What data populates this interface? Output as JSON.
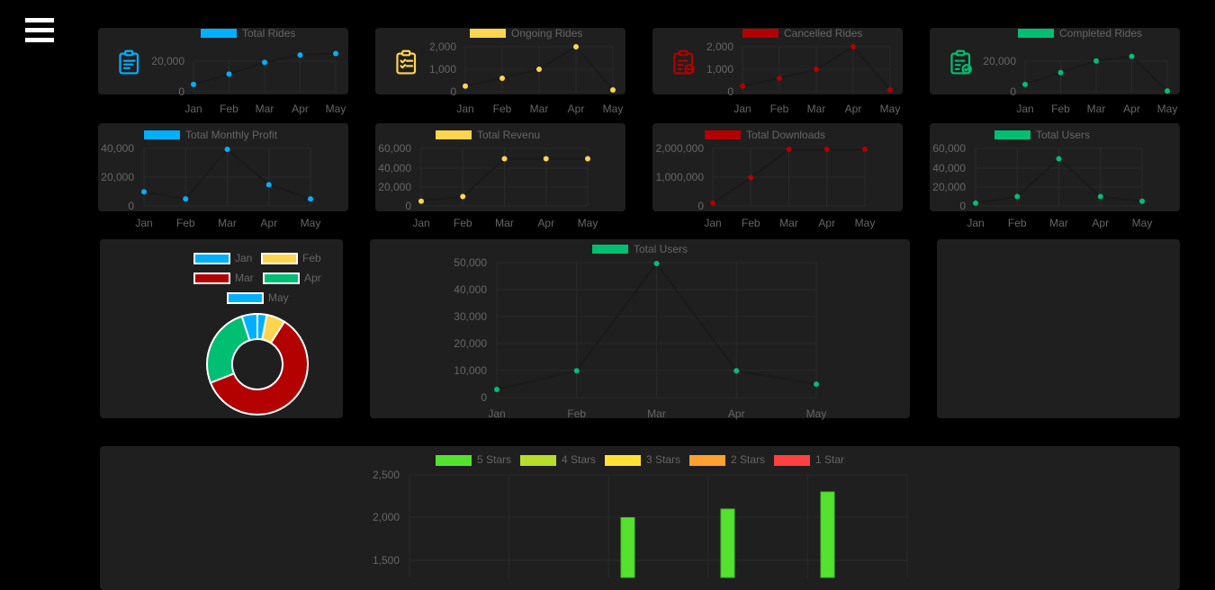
{
  "menu": {
    "icon": "hamburger-menu-icon"
  },
  "colors": {
    "background": "#000000",
    "card": "#1f1f1f",
    "grid": "#2a2a2a",
    "tick_text": "#666666",
    "blue": "#00b0ff",
    "yellow": "#ffd54f",
    "red": "#b30000",
    "green": "#00bf73",
    "star5": "#55e22e",
    "star4": "#b8dd2a",
    "star3": "#ffe135",
    "star2": "#ffa030",
    "star1": "#ff4040"
  },
  "months": [
    "Jan",
    "Feb",
    "Mar",
    "Apr",
    "May"
  ],
  "chart_data": [
    {
      "id": "total-rides",
      "type": "line",
      "title": "Total Rides",
      "legend": "Total Rides",
      "color": "#00b0ff",
      "icon": "clipboard-list-icon",
      "categories": [
        "Jan",
        "Feb",
        "Mar",
        "Apr",
        "May"
      ],
      "values": [
        5000,
        12000,
        20000,
        25000,
        26000
      ],
      "yticks": [
        "0",
        "20,000"
      ],
      "ylim": [
        0,
        30000
      ]
    },
    {
      "id": "ongoing-rides",
      "type": "line",
      "title": "Ongoing Rides",
      "legend": "Ongoing Rides",
      "color": "#ffd54f",
      "icon": "clipboard-checklist-icon",
      "categories": [
        "Jan",
        "Feb",
        "Mar",
        "Apr",
        "May"
      ],
      "values": [
        250,
        600,
        1000,
        2000,
        80
      ],
      "yticks": [
        "0",
        "1,000",
        "2,000"
      ],
      "ylim": [
        0,
        2000
      ]
    },
    {
      "id": "cancelled-rides",
      "type": "line",
      "title": "Cancelled Rides",
      "legend": "Cancelled Rides",
      "color": "#b30000",
      "icon": "clipboard-minus-icon",
      "categories": [
        "Jan",
        "Feb",
        "Mar",
        "Apr",
        "May"
      ],
      "values": [
        250,
        600,
        1000,
        2000,
        80
      ],
      "yticks": [
        "0",
        "1,000",
        "2,000"
      ],
      "ylim": [
        0,
        2000
      ]
    },
    {
      "id": "completed-rides",
      "type": "line",
      "title": "Completed Rides",
      "legend": "Completed Rides",
      "color": "#00bf73",
      "icon": "clipboard-check-icon",
      "categories": [
        "Jan",
        "Feb",
        "Mar",
        "Apr",
        "May"
      ],
      "values": [
        5000,
        13000,
        21000,
        24000,
        500
      ],
      "yticks": [
        "0",
        "20,000"
      ],
      "ylim": [
        0,
        30000
      ]
    },
    {
      "id": "total-monthly-profit",
      "type": "line",
      "title": "Total Monthly Profit",
      "legend": "Total Monthly Profit",
      "color": "#00b0ff",
      "categories": [
        "Jan",
        "Feb",
        "Mar",
        "Apr",
        "May"
      ],
      "values": [
        10000,
        5000,
        40000,
        15000,
        5000
      ],
      "yticks": [
        "0",
        "20,000",
        "40,000"
      ],
      "ylim": [
        0,
        40000
      ]
    },
    {
      "id": "total-revenu",
      "type": "line",
      "title": "Total Revenu",
      "legend": "Total Revenu",
      "color": "#ffd54f",
      "categories": [
        "Jan",
        "Feb",
        "Mar",
        "Apr",
        "May"
      ],
      "values": [
        5000,
        10000,
        50000,
        50000,
        50000
      ],
      "yticks": [
        "0",
        "20,000",
        "40,000",
        "60,000"
      ],
      "ylim": [
        0,
        60000
      ]
    },
    {
      "id": "total-downloads",
      "type": "line",
      "title": "Total Downloads",
      "legend": "Total Downloads",
      "color": "#b30000",
      "categories": [
        "Jan",
        "Feb",
        "Mar",
        "Apr",
        "May"
      ],
      "values": [
        100000,
        1000000,
        2000000,
        2000000,
        2000000
      ],
      "yticks": [
        "0",
        "1,000,000",
        "2,000,000"
      ],
      "ylim": [
        0,
        2000000
      ]
    },
    {
      "id": "total-users-small",
      "type": "line",
      "title": "Total Users",
      "legend": "Total Users",
      "color": "#00bf73",
      "categories": [
        "Jan",
        "Feb",
        "Mar",
        "Apr",
        "May"
      ],
      "values": [
        3000,
        10000,
        50000,
        10000,
        5000
      ],
      "yticks": [
        "0",
        "20,000",
        "40,000",
        "60,000"
      ],
      "ylim": [
        0,
        60000
      ]
    },
    {
      "id": "monthly-donut",
      "type": "pie",
      "title": "",
      "categories": [
        "Jan",
        "Feb",
        "Mar",
        "Apr",
        "May"
      ],
      "values": [
        3,
        6,
        60,
        26,
        5
      ],
      "colors": [
        "#00b0ff",
        "#ffd54f",
        "#b30000",
        "#00bf73",
        "#00b0ff"
      ]
    },
    {
      "id": "total-users-large",
      "type": "line",
      "title": "Total Users",
      "legend": "Total Users",
      "color": "#00bf73",
      "categories": [
        "Jan",
        "Feb",
        "Mar",
        "Apr",
        "May"
      ],
      "values": [
        3000,
        10000,
        50000,
        10000,
        5000
      ],
      "yticks": [
        "0",
        "10,000",
        "20,000",
        "30,000",
        "40,000",
        "50,000"
      ],
      "ylim": [
        0,
        50000
      ]
    },
    {
      "id": "ratings-bar",
      "type": "bar",
      "title": "",
      "legend": [
        "5 Stars",
        "4 Stars",
        "3 Stars",
        "2 Stars",
        "1 Star"
      ],
      "yticks": [
        "1,500",
        "2,000",
        "2,500"
      ],
      "series": [
        {
          "name": "5 Stars",
          "color": "#55e22e",
          "values": [
            null,
            null,
            2000,
            2100,
            2300
          ]
        }
      ],
      "ylim_visible": [
        1500,
        2500
      ]
    }
  ]
}
